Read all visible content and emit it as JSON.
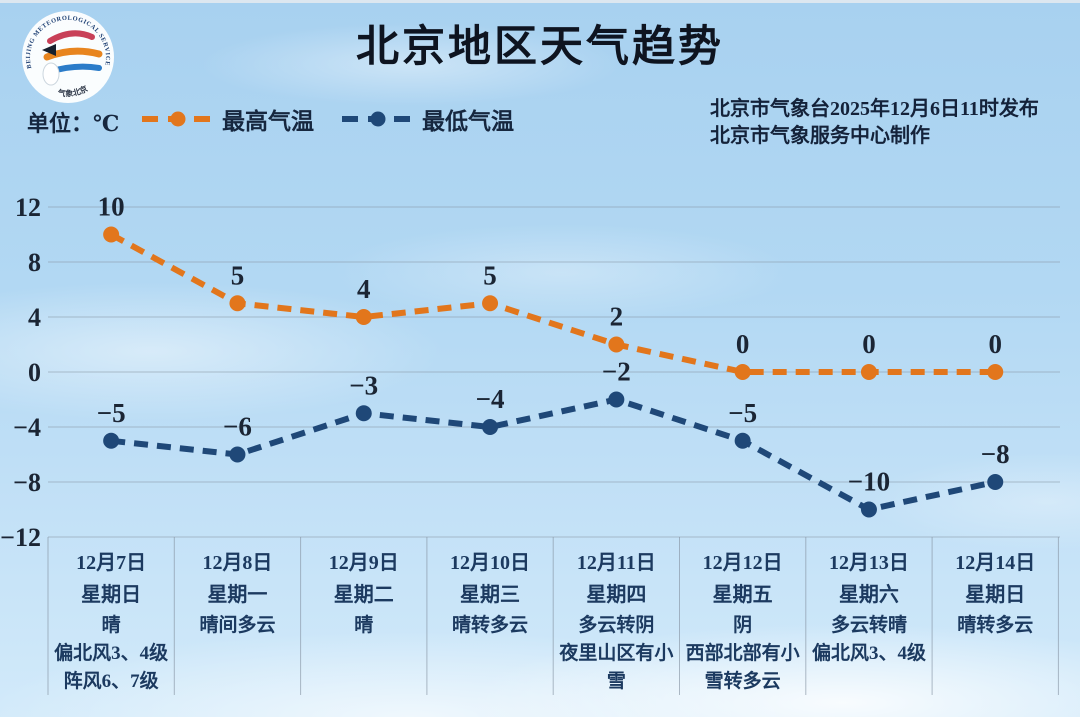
{
  "header": {
    "title": "北京地区天气趋势",
    "unit_label": "单位：℃",
    "issued_line1": "北京市气象台2025年12月6日11时发布",
    "issued_line2": "北京市气象服务中心制作",
    "logo": {
      "ring_text_top": "BEIJING METEOROLOGICAL SERVICE",
      "ring_text_bottom": "气象北京"
    }
  },
  "legend": {
    "items": [
      {
        "label": "最高气温",
        "color": "#e2761c"
      },
      {
        "label": "最低气温",
        "color": "#1f4878"
      }
    ]
  },
  "chart_data": {
    "type": "line",
    "categories": [
      "12月7日",
      "12月8日",
      "12月9日",
      "12月10日",
      "12月11日",
      "12月12日",
      "12月13日",
      "12月14日"
    ],
    "series": [
      {
        "name": "最高气温",
        "color": "#e2761c",
        "values": [
          10,
          5,
          4,
          5,
          2,
          0,
          0,
          0
        ]
      },
      {
        "name": "最低气温",
        "color": "#1f4878",
        "values": [
          -5,
          -6,
          -3,
          -4,
          -2,
          -5,
          -10,
          -8
        ]
      }
    ],
    "title": "北京地区天气趋势",
    "ylabel": "℃",
    "ylim": [
      -12,
      12
    ],
    "yticks": [
      12,
      8,
      4,
      0,
      -4,
      -8,
      -12
    ],
    "grid": true,
    "legend_position": "top-left",
    "line_style": "dashed",
    "marker": "circle"
  },
  "table": {
    "columns": [
      {
        "date": "12月7日",
        "weekday": "星期日",
        "weather": [
          "晴",
          "偏北风3、4级",
          "阵风6、7级"
        ]
      },
      {
        "date": "12月8日",
        "weekday": "星期一",
        "weather": [
          "晴间多云"
        ]
      },
      {
        "date": "12月9日",
        "weekday": "星期二",
        "weather": [
          "晴"
        ]
      },
      {
        "date": "12月10日",
        "weekday": "星期三",
        "weather": [
          "晴转多云"
        ]
      },
      {
        "date": "12月11日",
        "weekday": "星期四",
        "weather": [
          "多云转阴",
          "夜里山区有小雪"
        ]
      },
      {
        "date": "12月12日",
        "weekday": "星期五",
        "weather": [
          "阴",
          "西部北部有小雪转多云"
        ]
      },
      {
        "date": "12月13日",
        "weekday": "星期六",
        "weather": [
          "多云转晴",
          "偏北风3、4级"
        ]
      },
      {
        "date": "12月14日",
        "weekday": "星期日",
        "weather": [
          "晴转多云"
        ]
      }
    ]
  },
  "colors": {
    "max_line": "#e2761c",
    "min_line": "#1f4878",
    "grid": "#8795a4",
    "title_text": "#0e1420",
    "table_text": "#1c3a60",
    "sky_top": "#a8d1f0",
    "sky_bottom": "#d2eafa"
  }
}
